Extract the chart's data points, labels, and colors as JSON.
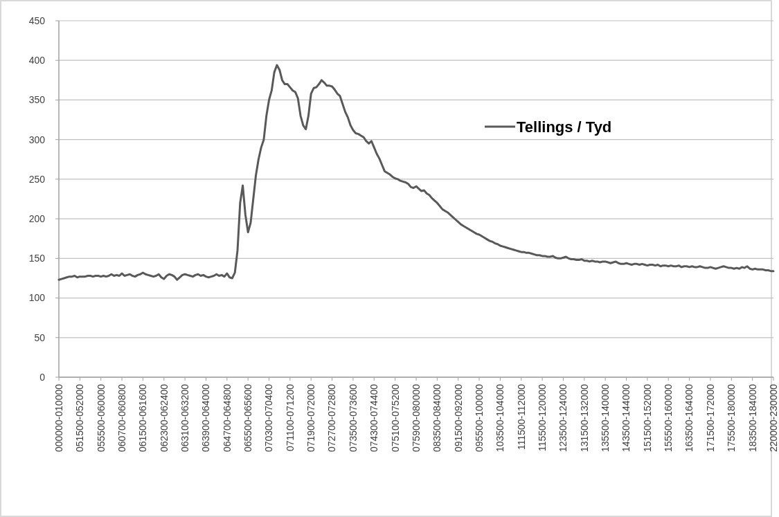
{
  "chart_data": {
    "type": "line",
    "categories": [
      "000000-010000",
      null,
      null,
      null,
      null,
      null,
      null,
      null,
      "051500-052000",
      null,
      null,
      null,
      null,
      null,
      null,
      null,
      "055500-060000",
      null,
      null,
      null,
      null,
      null,
      null,
      null,
      "060700-060800",
      null,
      null,
      null,
      null,
      null,
      null,
      null,
      "061500-061600",
      null,
      null,
      null,
      null,
      null,
      null,
      null,
      "062300-062400",
      null,
      null,
      null,
      null,
      null,
      null,
      null,
      "063100-063200",
      null,
      null,
      null,
      null,
      null,
      null,
      null,
      "063900-064000",
      null,
      null,
      null,
      null,
      null,
      null,
      null,
      "064700-064800",
      null,
      null,
      null,
      null,
      null,
      null,
      null,
      "065500-065600",
      null,
      null,
      null,
      null,
      null,
      null,
      null,
      "070300-070400",
      null,
      null,
      null,
      null,
      null,
      null,
      null,
      "071100-071200",
      null,
      null,
      null,
      null,
      null,
      null,
      null,
      "071900-072000",
      null,
      null,
      null,
      null,
      null,
      null,
      null,
      "072700-072800",
      null,
      null,
      null,
      null,
      null,
      null,
      null,
      "073500-073600",
      null,
      null,
      null,
      null,
      null,
      null,
      null,
      "074300-074400",
      null,
      null,
      null,
      null,
      null,
      null,
      null,
      "075100-075200",
      null,
      null,
      null,
      null,
      null,
      null,
      null,
      "075900-080000",
      null,
      null,
      null,
      null,
      null,
      null,
      null,
      "083500-084000",
      null,
      null,
      null,
      null,
      null,
      null,
      null,
      "091500-092000",
      null,
      null,
      null,
      null,
      null,
      null,
      null,
      "095500-100000",
      null,
      null,
      null,
      null,
      null,
      null,
      null,
      "103500-104000",
      null,
      null,
      null,
      null,
      null,
      null,
      null,
      "111500-112000",
      null,
      null,
      null,
      null,
      null,
      null,
      null,
      "115500-120000",
      null,
      null,
      null,
      null,
      null,
      null,
      null,
      "123500-124000",
      null,
      null,
      null,
      null,
      null,
      null,
      null,
      "131500-132000",
      null,
      null,
      null,
      null,
      null,
      null,
      null,
      "135500-140000",
      null,
      null,
      null,
      null,
      null,
      null,
      null,
      "143500-144000",
      null,
      null,
      null,
      null,
      null,
      null,
      null,
      "151500-152000",
      null,
      null,
      null,
      null,
      null,
      null,
      null,
      "155500-160000",
      null,
      null,
      null,
      null,
      null,
      null,
      null,
      "163500-164000",
      null,
      null,
      null,
      null,
      null,
      null,
      null,
      "171500-172000",
      null,
      null,
      null,
      null,
      null,
      null,
      null,
      "175500-180000",
      null,
      null,
      null,
      null,
      null,
      null,
      null,
      "183500-184000",
      null,
      null,
      null,
      null,
      null,
      null,
      null,
      "220000-230000"
    ],
    "series": [
      {
        "name": "Tellings / Tyd",
        "color": "#595959",
        "values": [
          123,
          124,
          125,
          126,
          127,
          127,
          128,
          126,
          127,
          127,
          127,
          128,
          128,
          127,
          128,
          128,
          127,
          128,
          127,
          128,
          130,
          128,
          129,
          128,
          131,
          128,
          129,
          130,
          128,
          127,
          129,
          130,
          132,
          130,
          129,
          128,
          127,
          128,
          130,
          126,
          124,
          128,
          130,
          129,
          127,
          123,
          126,
          129,
          130,
          129,
          128,
          127,
          129,
          130,
          128,
          129,
          127,
          126,
          127,
          128,
          130,
          128,
          129,
          127,
          131,
          126,
          125,
          132,
          160,
          220,
          242,
          205,
          183,
          195,
          225,
          255,
          275,
          290,
          300,
          330,
          350,
          362,
          385,
          394,
          388,
          375,
          370,
          370,
          366,
          362,
          360,
          352,
          330,
          318,
          313,
          330,
          358,
          365,
          366,
          370,
          375,
          372,
          368,
          368,
          367,
          363,
          358,
          355,
          345,
          335,
          328,
          318,
          312,
          308,
          307,
          305,
          303,
          298,
          295,
          298,
          290,
          282,
          276,
          268,
          260,
          258,
          256,
          253,
          251,
          250,
          248,
          247,
          246,
          244,
          240,
          239,
          241,
          238,
          235,
          236,
          232,
          230,
          226,
          223,
          220,
          216,
          212,
          210,
          208,
          205,
          202,
          199,
          196,
          193,
          191,
          189,
          187,
          185,
          183,
          181,
          180,
          178,
          176,
          174,
          172,
          171,
          169,
          168,
          166,
          165,
          164,
          163,
          162,
          161,
          160,
          159,
          158,
          158,
          157,
          157,
          156,
          155,
          154,
          154,
          153,
          153,
          152,
          152,
          153,
          151,
          150,
          150,
          151,
          152,
          150,
          149,
          149,
          148,
          148,
          149,
          147,
          147,
          146,
          147,
          146,
          146,
          145,
          146,
          146,
          145,
          144,
          145,
          146,
          144,
          143,
          143,
          144,
          143,
          142,
          143,
          143,
          142,
          143,
          142,
          141,
          142,
          142,
          141,
          142,
          140,
          141,
          141,
          140,
          141,
          140,
          140,
          141,
          139,
          140,
          140,
          139,
          140,
          139,
          139,
          140,
          139,
          138,
          138,
          139,
          138,
          137,
          138,
          139,
          140,
          139,
          138,
          138,
          137,
          138,
          137,
          139,
          138,
          140,
          137,
          136,
          137,
          136,
          136,
          136,
          135,
          135,
          134,
          134
        ]
      }
    ],
    "ylim": [
      0,
      450
    ],
    "yticks": [
      0,
      50,
      100,
      150,
      200,
      250,
      300,
      350,
      400,
      450
    ],
    "grid": "y",
    "legend": "top right",
    "marker": "none",
    "line_style": "solid"
  }
}
